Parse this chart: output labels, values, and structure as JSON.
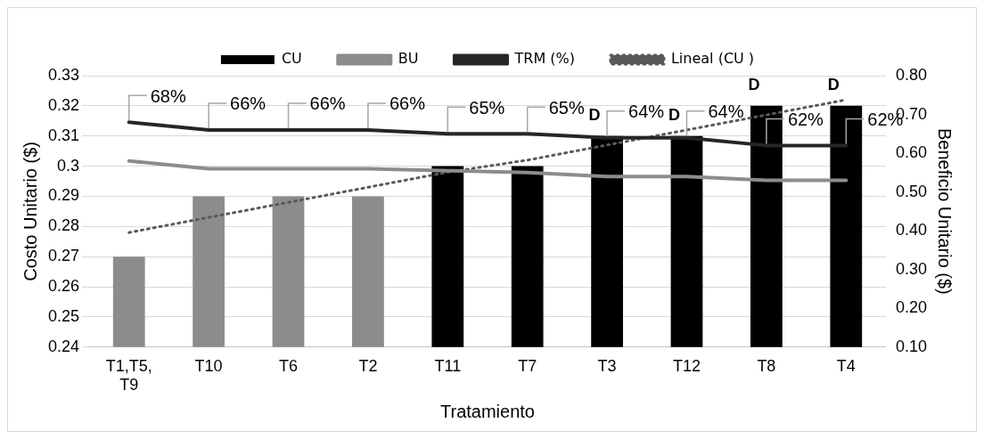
{
  "chart_data": {
    "type": "bar",
    "xlabel": "Tratamiento",
    "ylabel": "Costo Unitario ($)",
    "y2label": "Beneficio Unitario ($)",
    "categories": [
      "T1,T5, T9",
      "T10",
      "T6",
      "T2",
      "T11",
      "T7",
      "T3",
      "T12",
      "T8",
      "T4"
    ],
    "series": [
      {
        "name": "CU",
        "colors": [
          "#8c8c8c",
          "#8c8c8c",
          "#8c8c8c",
          "#8c8c8c",
          "#000000",
          "#000000",
          "#000000",
          "#000000",
          "#000000",
          "#000000"
        ],
        "values": [
          0.27,
          0.29,
          0.29,
          0.29,
          0.3,
          0.3,
          0.31,
          0.31,
          0.32,
          0.32
        ]
      },
      {
        "name": "BU",
        "type": "line",
        "axis": "y2",
        "color": "#8c8c8c",
        "values": [
          0.58,
          0.56,
          0.56,
          0.56,
          0.555,
          0.55,
          0.54,
          0.54,
          0.53,
          0.53
        ]
      },
      {
        "name": "TRM (%)",
        "type": "line",
        "axis": "y2",
        "color": "#262626",
        "values": [
          0.68,
          0.66,
          0.66,
          0.66,
          0.65,
          0.65,
          0.64,
          0.64,
          0.62,
          0.62
        ],
        "value_labels": [
          "68%",
          "66%",
          "66%",
          "66%",
          "65%",
          "65%",
          "64%",
          "64%",
          "62%",
          "62%"
        ]
      },
      {
        "name": "Lineal (CU )",
        "type": "line",
        "line_style": "dotted",
        "color": "#595959",
        "values": [
          0.278,
          0.283,
          0.288,
          0.293,
          0.298,
          0.302,
          0.307,
          0.312,
          0.317,
          0.322
        ]
      }
    ],
    "ylim": [
      0.24,
      0.33
    ],
    "yticks": [
      0.24,
      0.25,
      0.26,
      0.27,
      0.28,
      0.29,
      0.3,
      0.31,
      0.32,
      0.33
    ],
    "y2lim": [
      0.1,
      0.8
    ],
    "y2ticks": [
      {
        "value": 0.1,
        "label": "0.10"
      },
      {
        "value": 0.2,
        "label": "0.20"
      },
      {
        "value": 0.3,
        "label": "0.30"
      },
      {
        "value": 0.4,
        "label": "0.40"
      },
      {
        "value": 0.5,
        "label": "0.50"
      },
      {
        "value": 0.6,
        "label": "0.60"
      },
      {
        "value": 0.7,
        "label": "0.70"
      },
      {
        "value": 0.8,
        "label": "0.80"
      }
    ],
    "annotations": [
      {
        "text": "D",
        "x": "T3",
        "y": 0.31
      },
      {
        "text": "D",
        "x": "T12",
        "y": 0.31
      },
      {
        "text": "D",
        "x": "T8",
        "y": 0.32
      },
      {
        "text": "D",
        "x": "T4",
        "y": 0.32
      }
    ],
    "grid": "y",
    "legend": "top"
  }
}
